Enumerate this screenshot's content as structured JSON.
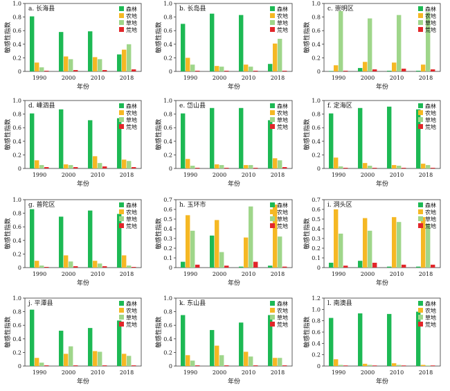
{
  "figure": {
    "colors": {
      "forest": "#1db954",
      "farmland": "#f5b824",
      "grassland": "#9fd68a",
      "wasteland": "#e2262a"
    },
    "legend_labels": [
      "森林",
      "农地",
      "草地",
      "荒地"
    ]
  },
  "chart_data": [
    {
      "type": "bar",
      "title": "a. 长海县",
      "xlabel": "年份",
      "ylabel": "敏感性指数",
      "categories": [
        "1990",
        "2000",
        "2010",
        "2018"
      ],
      "ylim": [
        0,
        1.0
      ],
      "yticks": [
        0,
        0.2,
        0.4,
        0.6,
        0.8,
        1.0
      ],
      "series": [
        {
          "name": "森林",
          "values": [
            0.81,
            0.58,
            0.59,
            0.25
          ]
        },
        {
          "name": "农地",
          "values": [
            0.13,
            0.22,
            0.21,
            0.32
          ]
        },
        {
          "name": "草地",
          "values": [
            0.06,
            0.18,
            0.18,
            0.4
          ]
        },
        {
          "name": "荒地",
          "values": [
            0.01,
            0.02,
            0.02,
            0.03
          ]
        }
      ]
    },
    {
      "type": "bar",
      "title": "b. 长岛县",
      "xlabel": "年份",
      "ylabel": "敏感性指数",
      "categories": [
        "1990",
        "2000",
        "2010",
        "2018"
      ],
      "ylim": [
        0,
        1.0
      ],
      "yticks": [
        0,
        0.2,
        0.4,
        0.6,
        0.8,
        1.0
      ],
      "series": [
        {
          "name": "森林",
          "values": [
            0.7,
            0.85,
            0.83,
            0.11
          ]
        },
        {
          "name": "农地",
          "values": [
            0.2,
            0.08,
            0.1,
            0.41
          ]
        },
        {
          "name": "草地",
          "values": [
            0.1,
            0.07,
            0.07,
            0.48
          ]
        },
        {
          "name": "荒地",
          "values": [
            0.01,
            0.01,
            0.01,
            0.01
          ]
        }
      ]
    },
    {
      "type": "bar",
      "title": "c. 崇明区",
      "xlabel": "年份",
      "ylabel": "敏感性指数",
      "categories": [
        "1990",
        "2000",
        "2010",
        "2018"
      ],
      "ylim": [
        0,
        1.0
      ],
      "yticks": [
        0,
        0.2,
        0.4,
        0.6,
        0.8,
        1.0
      ],
      "series": [
        {
          "name": "森林",
          "values": [
            0.0,
            0.05,
            0.01,
            0.01
          ]
        },
        {
          "name": "农地",
          "values": [
            0.09,
            0.14,
            0.13,
            0.1
          ]
        },
        {
          "name": "草地",
          "values": [
            0.89,
            0.78,
            0.83,
            0.87
          ]
        },
        {
          "name": "荒地",
          "values": [
            0.01,
            0.03,
            0.04,
            0.03
          ]
        }
      ]
    },
    {
      "type": "bar",
      "title": "d. 嵊泗县",
      "xlabel": "年份",
      "ylabel": "敏感性指数",
      "categories": [
        "1990",
        "2000",
        "2010",
        "2018"
      ],
      "ylim": [
        0,
        1.0
      ],
      "yticks": [
        0,
        0.2,
        0.4,
        0.6,
        0.8,
        1.0
      ],
      "series": [
        {
          "name": "森林",
          "values": [
            0.81,
            0.87,
            0.71,
            0.74
          ]
        },
        {
          "name": "农地",
          "values": [
            0.12,
            0.06,
            0.18,
            0.13
          ]
        },
        {
          "name": "草地",
          "values": [
            0.05,
            0.05,
            0.08,
            0.11
          ]
        },
        {
          "name": "荒地",
          "values": [
            0.02,
            0.02,
            0.03,
            0.02
          ]
        }
      ]
    },
    {
      "type": "bar",
      "title": "e. 岱山县",
      "xlabel": "年份",
      "ylabel": "敏感性指数",
      "categories": [
        "1990",
        "2000",
        "2010",
        "2018"
      ],
      "ylim": [
        0,
        1.0
      ],
      "yticks": [
        0,
        0.2,
        0.4,
        0.6,
        0.8,
        1.0
      ],
      "series": [
        {
          "name": "森林",
          "values": [
            0.81,
            0.89,
            0.89,
            0.71
          ]
        },
        {
          "name": "农地",
          "values": [
            0.14,
            0.06,
            0.05,
            0.15
          ]
        },
        {
          "name": "草地",
          "values": [
            0.04,
            0.05,
            0.05,
            0.12
          ]
        },
        {
          "name": "荒地",
          "values": [
            0.01,
            0.01,
            0.01,
            0.02
          ]
        }
      ]
    },
    {
      "type": "bar",
      "title": "f. 定海区",
      "xlabel": "年份",
      "ylabel": "敏感性指数",
      "categories": [
        "1990",
        "2000",
        "2010",
        "2018"
      ],
      "ylim": [
        0,
        1.0
      ],
      "yticks": [
        0,
        0.2,
        0.4,
        0.6,
        0.8,
        1.0
      ],
      "series": [
        {
          "name": "森林",
          "values": [
            0.81,
            0.89,
            0.91,
            0.87
          ]
        },
        {
          "name": "农地",
          "values": [
            0.16,
            0.08,
            0.05,
            0.07
          ]
        },
        {
          "name": "草地",
          "values": [
            0.03,
            0.04,
            0.04,
            0.05
          ]
        },
        {
          "name": "荒地",
          "values": [
            0.01,
            0.01,
            0.01,
            0.01
          ]
        }
      ]
    },
    {
      "type": "bar",
      "title": "g. 普陀区",
      "xlabel": "年份",
      "ylabel": "敏感性指数",
      "categories": [
        "1990",
        "2000",
        "2010",
        "2018"
      ],
      "ylim": [
        0,
        1.0
      ],
      "yticks": [
        0,
        0.2,
        0.4,
        0.6,
        0.8,
        1.0
      ],
      "series": [
        {
          "name": "森林",
          "values": [
            0.86,
            0.75,
            0.84,
            0.79
          ]
        },
        {
          "name": "农地",
          "values": [
            0.1,
            0.18,
            0.1,
            0.18
          ]
        },
        {
          "name": "草地",
          "values": [
            0.03,
            0.09,
            0.06,
            0.03
          ]
        },
        {
          "name": "荒地",
          "values": [
            0.01,
            0.02,
            0.02,
            0.01
          ]
        }
      ]
    },
    {
      "type": "bar",
      "title": "h. 玉环市",
      "xlabel": "年份",
      "ylabel": "敏感性指数",
      "categories": [
        "1990",
        "2000",
        "2010",
        "2018"
      ],
      "ylim": [
        0,
        0.7
      ],
      "yticks": [
        0,
        0.1,
        0.2,
        0.3,
        0.4,
        0.5,
        0.6,
        0.7
      ],
      "series": [
        {
          "name": "森林",
          "values": [
            0.06,
            0.33,
            0.01,
            0.02
          ]
        },
        {
          "name": "农地",
          "values": [
            0.54,
            0.49,
            0.31,
            0.65
          ]
        },
        {
          "name": "草地",
          "values": [
            0.38,
            0.16,
            0.63,
            0.32
          ]
        },
        {
          "name": "荒地",
          "values": [
            0.03,
            0.02,
            0.06,
            0.01
          ]
        }
      ]
    },
    {
      "type": "bar",
      "title": "i. 洞头区",
      "xlabel": "年份",
      "ylabel": "敏感性指数",
      "categories": [
        "1990",
        "2000",
        "2010",
        "2018"
      ],
      "ylim": [
        0,
        0.7
      ],
      "yticks": [
        0,
        0.1,
        0.2,
        0.3,
        0.4,
        0.5,
        0.6,
        0.7
      ],
      "series": [
        {
          "name": "森林",
          "values": [
            0.05,
            0.07,
            0.01,
            0.01
          ]
        },
        {
          "name": "农地",
          "values": [
            0.6,
            0.51,
            0.52,
            0.52
          ]
        },
        {
          "name": "草地",
          "values": [
            0.35,
            0.38,
            0.47,
            0.45
          ]
        },
        {
          "name": "荒地",
          "values": [
            0.02,
            0.05,
            0.03,
            0.03
          ]
        }
      ]
    },
    {
      "type": "bar",
      "title": "j. 平潭县",
      "xlabel": "年份",
      "ylabel": "敏感性指数",
      "categories": [
        "1990",
        "2000",
        "2010",
        "2018"
      ],
      "ylim": [
        0,
        1.0
      ],
      "yticks": [
        0,
        0.2,
        0.4,
        0.6,
        0.8,
        1.0
      ],
      "series": [
        {
          "name": "森林",
          "values": [
            0.83,
            0.52,
            0.56,
            0.67
          ]
        },
        {
          "name": "农地",
          "values": [
            0.12,
            0.18,
            0.22,
            0.18
          ]
        },
        {
          "name": "草地",
          "values": [
            0.05,
            0.29,
            0.21,
            0.15
          ]
        },
        {
          "name": "荒地",
          "values": [
            0.01,
            0.01,
            0.01,
            0.01
          ]
        }
      ]
    },
    {
      "type": "bar",
      "title": "k. 东山县",
      "xlabel": "年份",
      "ylabel": "敏感性指数",
      "categories": [
        "1990",
        "2000",
        "2010",
        "2018"
      ],
      "ylim": [
        0,
        1.0
      ],
      "yticks": [
        0,
        0.2,
        0.4,
        0.6,
        0.8,
        1.0
      ],
      "series": [
        {
          "name": "森林",
          "values": [
            0.75,
            0.53,
            0.64,
            0.75
          ]
        },
        {
          "name": "农地",
          "values": [
            0.16,
            0.3,
            0.21,
            0.12
          ]
        },
        {
          "name": "草地",
          "values": [
            0.08,
            0.16,
            0.14,
            0.12
          ]
        },
        {
          "name": "荒地",
          "values": [
            0.01,
            0.01,
            0.01,
            0.01
          ]
        }
      ]
    },
    {
      "type": "bar",
      "title": "l. 南澳县",
      "xlabel": "年份",
      "ylabel": "敏感性指数",
      "categories": [
        "1990",
        "2000",
        "2010",
        "2018"
      ],
      "ylim": [
        0,
        1.2
      ],
      "yticks": [
        0,
        0.2,
        0.4,
        0.6,
        0.8,
        1.0,
        1.2
      ],
      "series": [
        {
          "name": "森林",
          "values": [
            0.85,
            0.93,
            0.92,
            0.96
          ]
        },
        {
          "name": "农地",
          "values": [
            0.12,
            0.04,
            0.05,
            0.02
          ]
        },
        {
          "name": "草地",
          "values": [
            0.02,
            0.02,
            0.02,
            0.01
          ]
        },
        {
          "name": "荒地",
          "values": [
            0.01,
            0.01,
            0.01,
            0.01
          ]
        }
      ]
    }
  ]
}
